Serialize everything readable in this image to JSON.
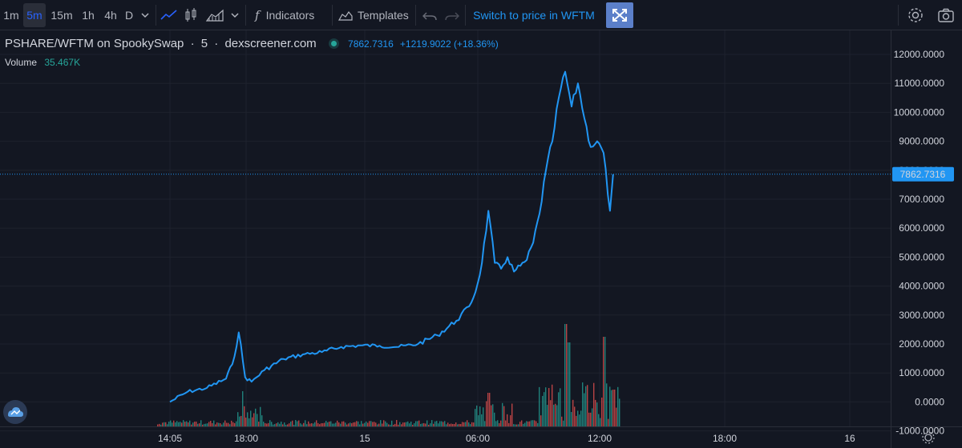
{
  "toolbar": {
    "intervals": [
      "1m",
      "5m",
      "15m",
      "1h",
      "4h",
      "D"
    ],
    "active_interval": "5m",
    "indicators_label": "Indicators",
    "templates_label": "Templates",
    "switch_label": "Switch to price in WFTM"
  },
  "legend": {
    "pair": "PSHARE/WFTM on SpookySwap",
    "interval": "5",
    "source": "dexscreener.com",
    "price": "7862.7316",
    "change": "+1219.9022 (+18.36%)",
    "volume_label": "Volume",
    "volume_value": "35.467K"
  },
  "colors": {
    "background": "#131722",
    "line": "#2196f3",
    "up": "#26a69a",
    "down": "#ef5350"
  },
  "chart_data": {
    "type": "line",
    "price_axis": {
      "ticks": [
        "12000.0000",
        "11000.0000",
        "10000.0000",
        "9000.0000",
        "8000.0000",
        "7000.0000",
        "6000.0000",
        "5000.0000",
        "4000.0000",
        "3000.0000",
        "2000.0000",
        "1000.0000",
        "0.0000",
        "-1000.0000"
      ],
      "last_price": "7862.7316",
      "range": [
        -1000,
        12000
      ]
    },
    "time_axis": {
      "ticks": [
        "14:05",
        "18:00",
        "15",
        "06:00",
        "12:00",
        "18:00",
        "16"
      ]
    },
    "series": [
      {
        "x": [
          "14:05",
          "15:00",
          "16:00",
          "17:00",
          "17:20",
          "17:40",
          "18:00",
          "18:20",
          "19:00",
          "20:00",
          "21:00",
          "22:00",
          "23:00",
          "00:00",
          "01:00",
          "02:00",
          "03:00",
          "04:00",
          "05:00",
          "05:40",
          "06:00",
          "06:20",
          "06:40",
          "07:00",
          "07:20",
          "07:40",
          "08:00",
          "08:20",
          "08:40",
          "09:00",
          "09:20",
          "09:40",
          "10:00",
          "10:20",
          "10:40",
          "11:00",
          "11:20",
          "11:40",
          "12:00",
          "12:20",
          "12:40",
          "13:00",
          "13:10"
        ],
        "y": [
          0,
          350,
          480,
          800,
          1300,
          2400,
          850,
          700,
          1100,
          1480,
          1640,
          1720,
          1900,
          1950,
          1940,
          1900,
          2000,
          2300,
          2800,
          3300,
          3800,
          4800,
          6600,
          4800,
          4600,
          5000,
          4500,
          4700,
          4900,
          5500,
          6500,
          8000,
          9000,
          10500,
          11400,
          10200,
          11000,
          9800,
          8800,
          9000,
          8600,
          6600,
          7862.7316
        ]
      }
    ],
    "volume": {
      "note_values_unlabeled": false,
      "large_bars_hhmm": [
        "17:50",
        "06:40",
        "10:40",
        "10:50",
        "12:40",
        "13:10"
      ]
    }
  }
}
